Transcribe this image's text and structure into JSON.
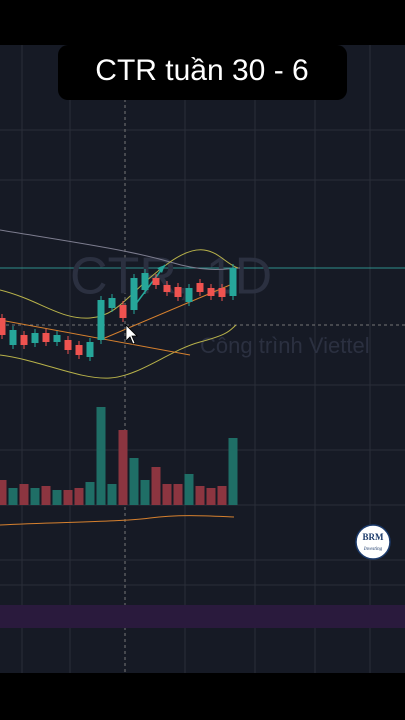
{
  "title": "CTR tuần 30 - 6",
  "watermark": {
    "symbol": "CTR, 1D",
    "company": "Công trình Viettel"
  },
  "logo": {
    "name": "BRM",
    "tagline": "Investing"
  }
}
